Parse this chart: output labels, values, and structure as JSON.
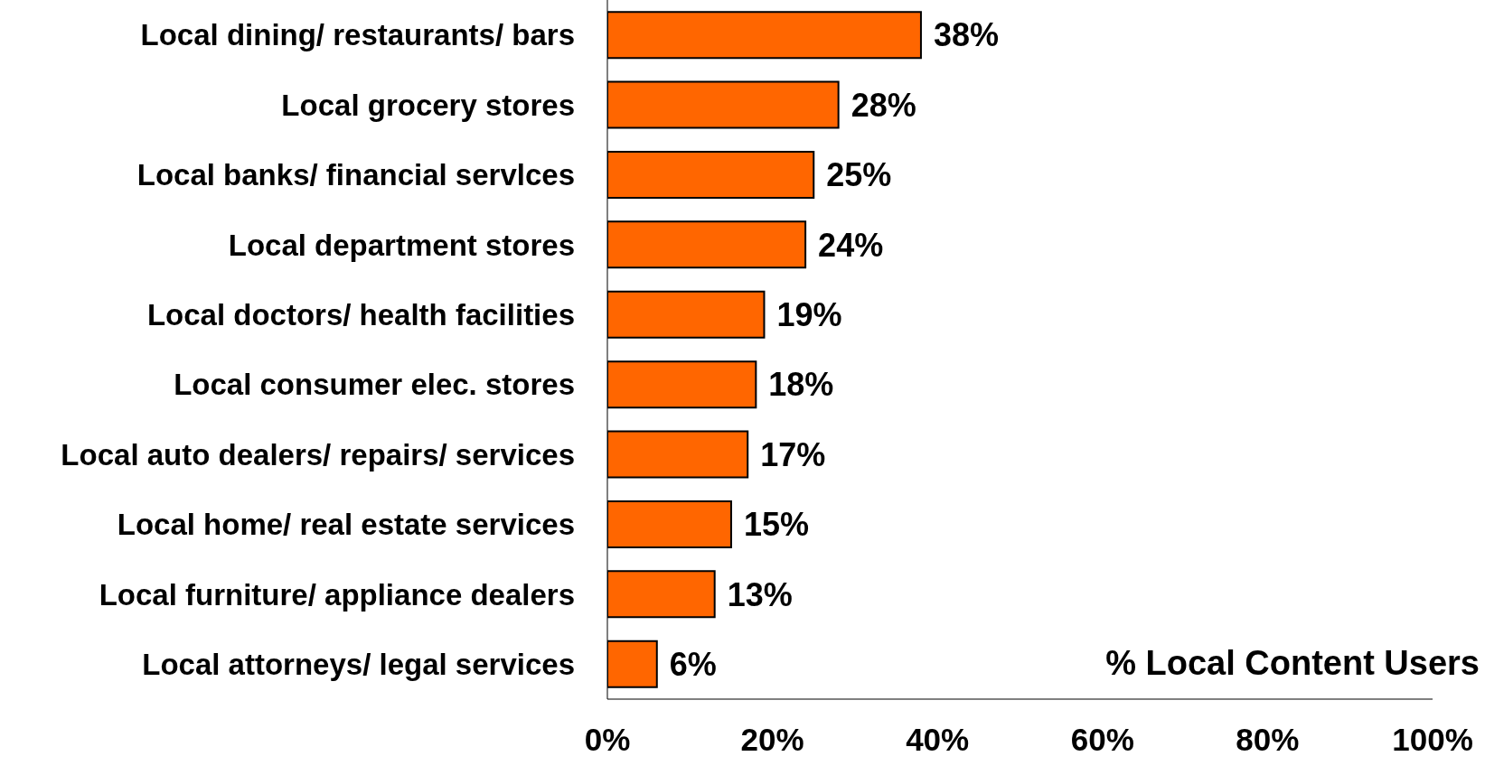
{
  "chart_data": {
    "type": "bar",
    "orientation": "horizontal",
    "xlabel": "% Local Content Users",
    "categories": [
      "Local dining/ restaurants/ bars",
      "Local grocery stores",
      "Local banks/ financial servlces",
      "Local department stores",
      "Local doctors/ health facilities",
      "Local consumer elec. stores",
      "Local auto dealers/ repairs/ services",
      "Local home/ real estate services",
      "Local furniture/ appliance dealers",
      "Local attorneys/ legal services"
    ],
    "values": [
      38,
      28,
      25,
      24,
      19,
      18,
      17,
      15,
      13,
      6
    ],
    "color": "#ff6600",
    "xlim": [
      0,
      100
    ],
    "xticks": [
      {
        "value": 0,
        "label": "0%"
      },
      {
        "value": 20,
        "label": "20%"
      },
      {
        "value": 40,
        "label": "40%"
      },
      {
        "value": 60,
        "label": "60%"
      },
      {
        "value": 80,
        "label": "80%"
      },
      {
        "value": 100,
        "label": "100%"
      }
    ],
    "value_labels": [
      "38%",
      "28%",
      "25%",
      "24%",
      "19%",
      "18%",
      "17%",
      "15%",
      "13%",
      "6%"
    ],
    "grid": false,
    "legend": false
  }
}
